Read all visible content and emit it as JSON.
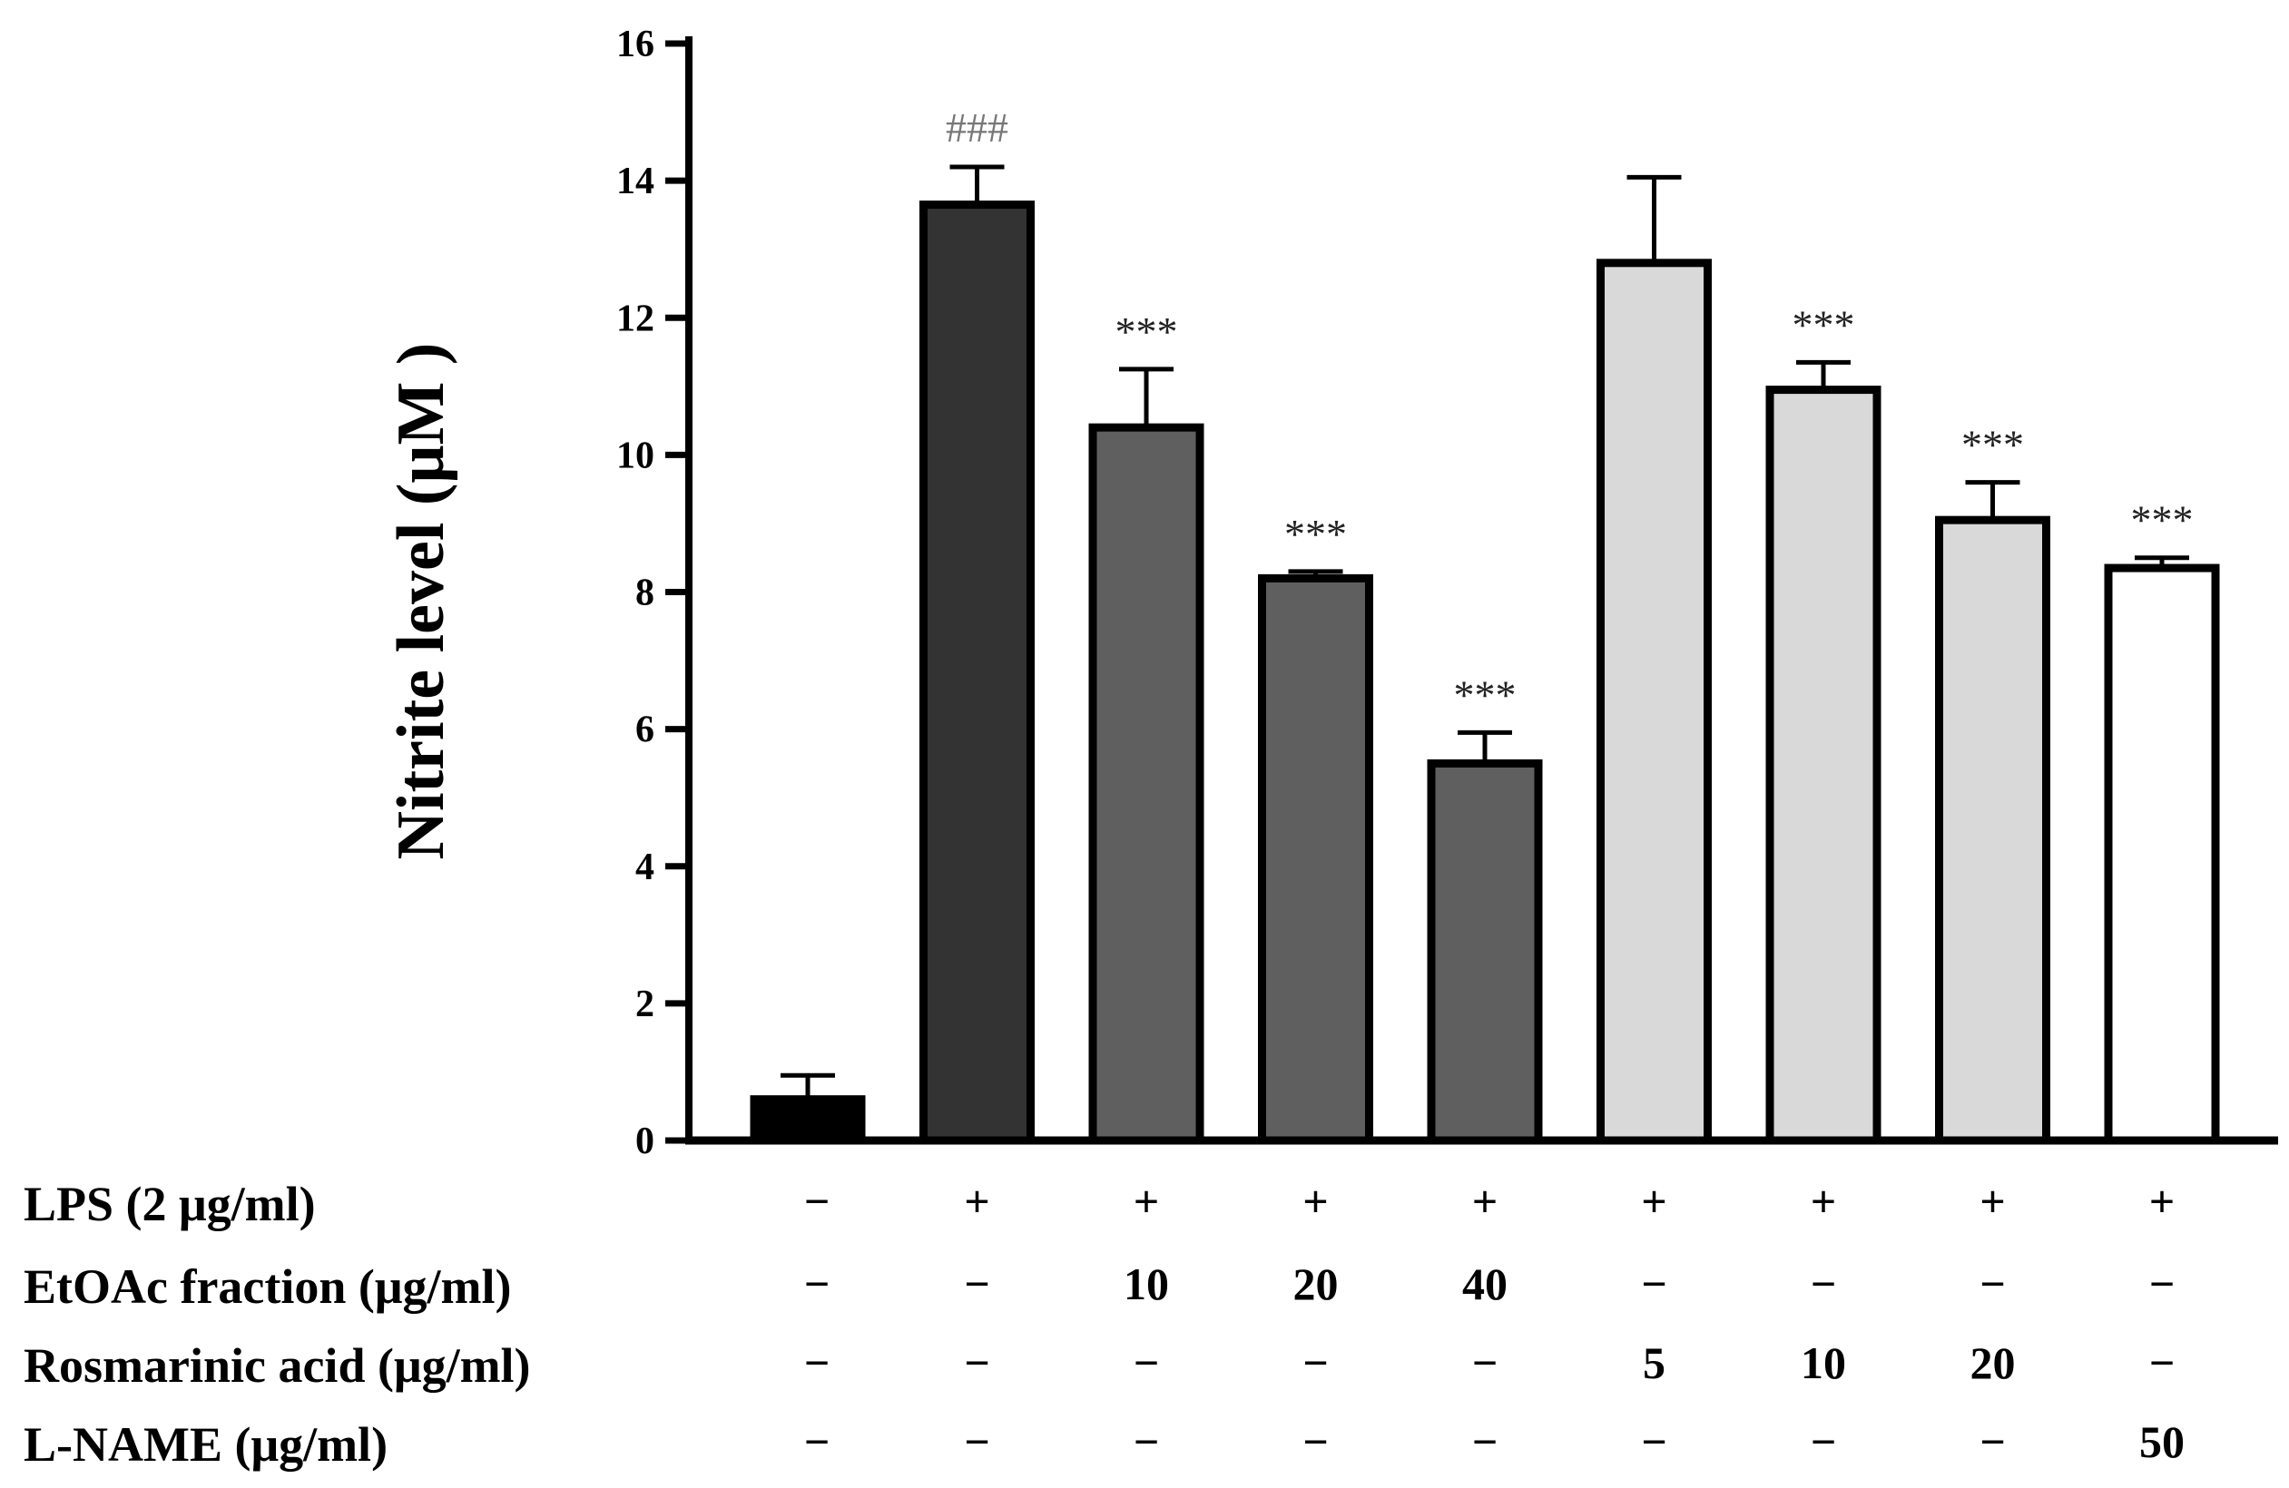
{
  "chart_data": {
    "type": "bar",
    "title": "",
    "xlabel": "",
    "ylabel": "Nitrite level (μM )",
    "ylim": [
      0,
      16
    ],
    "yticks": [
      0,
      2,
      4,
      6,
      8,
      10,
      12,
      14,
      16
    ],
    "grid": false,
    "values": [
      0.6,
      13.65,
      10.4,
      8.2,
      5.5,
      12.8,
      10.95,
      9.05,
      8.35
    ],
    "errors": [
      0.35,
      0.55,
      0.85,
      0.1,
      0.45,
      1.25,
      0.4,
      0.55,
      0.15
    ],
    "bar_colors": [
      "#000000",
      "#333333",
      "#5f5f5f",
      "#5f5f5f",
      "#5f5f5f",
      "#d9d9d9",
      "#d9d9d9",
      "#d9d9d9",
      "#ffffff"
    ],
    "annotations": [
      "",
      "###",
      "***",
      "***",
      "***",
      "",
      "***",
      "***",
      "***"
    ],
    "conditions": [
      {
        "label": "LPS (2 μg/ml)",
        "values": [
          "−",
          "+",
          "+",
          "+",
          "+",
          "+",
          "+",
          "+",
          "+"
        ]
      },
      {
        "label": "EtOAc fraction (μg/ml)",
        "values": [
          "−",
          "−",
          "10",
          "20",
          "40",
          "−",
          "−",
          "−",
          "−"
        ]
      },
      {
        "label": "Rosmarinic acid (μg/ml)",
        "values": [
          "−",
          "−",
          "−",
          "−",
          "−",
          "5",
          "10",
          "20",
          "−"
        ]
      },
      {
        "label": "L-NAME (μg/ml)",
        "values": [
          "−",
          "−",
          "−",
          "−",
          "−",
          "−",
          "−",
          "−",
          "50"
        ]
      }
    ]
  }
}
